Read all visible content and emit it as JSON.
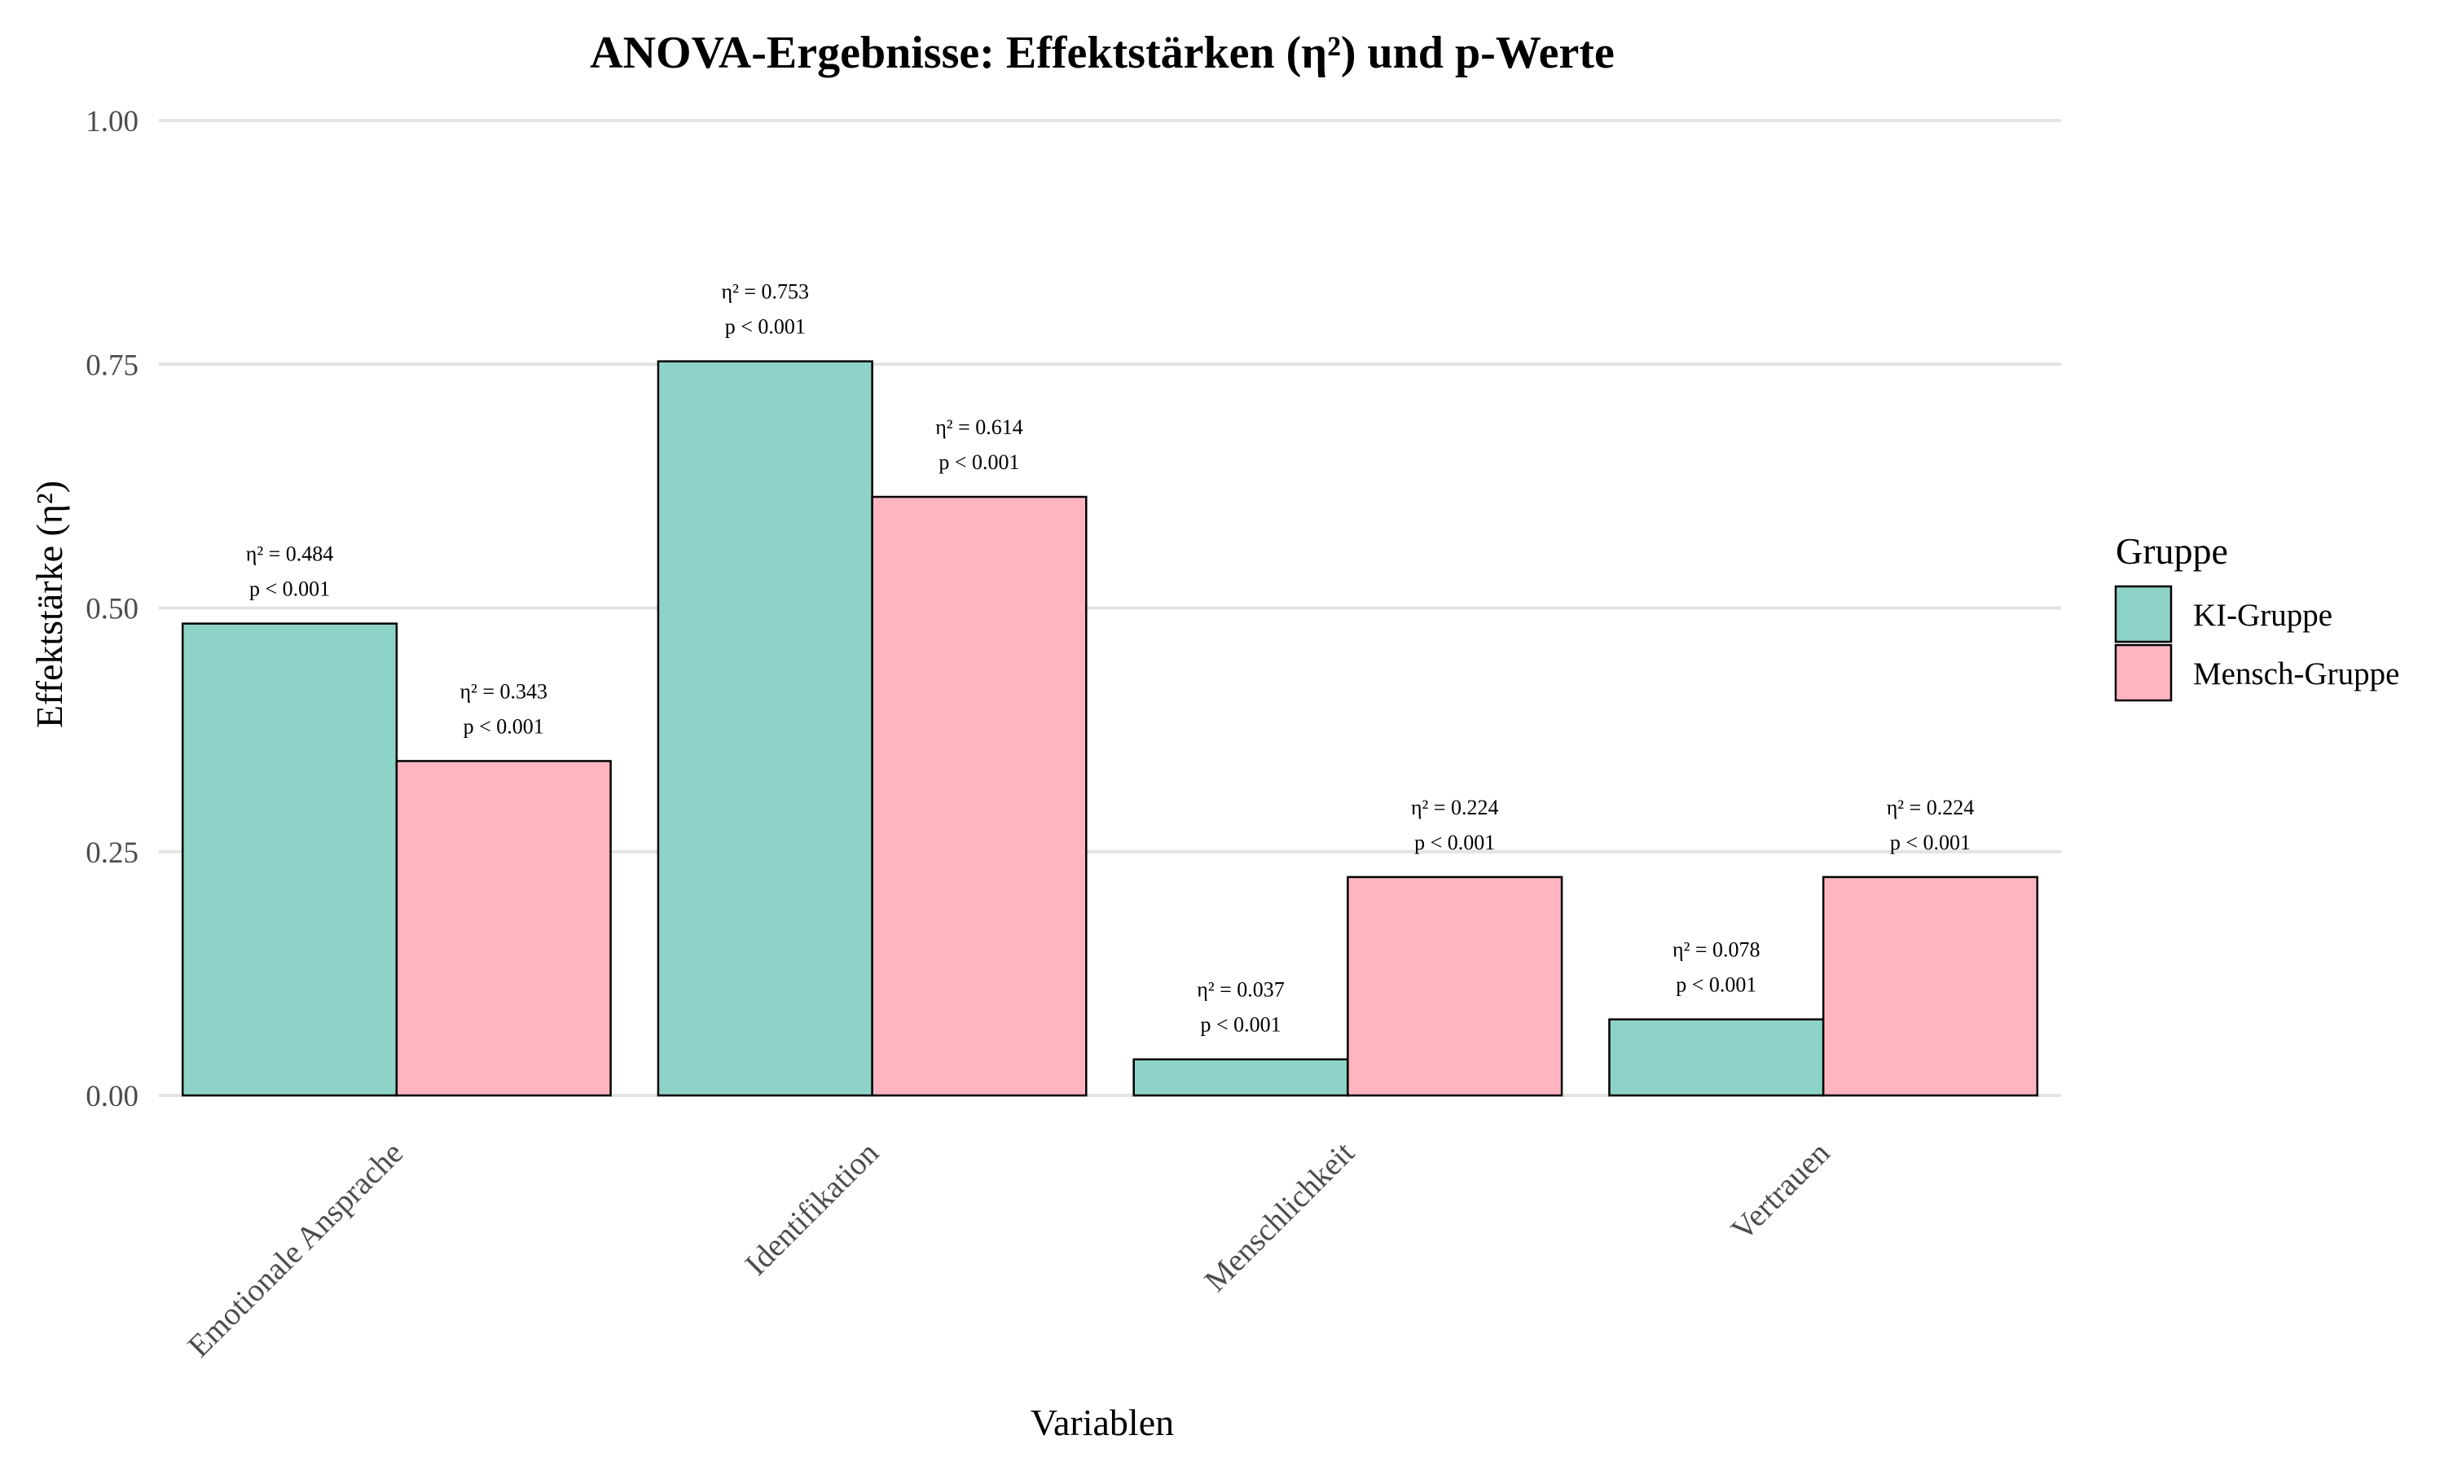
{
  "chart_data": {
    "type": "bar",
    "title": "ANOVA-Ergebnisse: Effektstärken (η²) und p-Werte",
    "xlabel": "Variablen",
    "ylabel": "Effektstärke (η²)",
    "ylim": [
      0,
      1
    ],
    "yticks": [
      "0.00",
      "0.25",
      "0.50",
      "0.75",
      "1.00"
    ],
    "ytick_values": [
      0,
      0.25,
      0.5,
      0.75,
      1.0
    ],
    "grid": true,
    "legend_position": "right",
    "legend_title": "Gruppe",
    "categories": [
      "Emotionale Ansprache",
      "Identifikation",
      "Menschlichkeit",
      "Vertrauen"
    ],
    "series": [
      {
        "name": "KI-Gruppe",
        "color": "#8ED3C7",
        "values": [
          0.484,
          0.753,
          0.037,
          0.078
        ],
        "labels": [
          [
            "η² = 0.484",
            "p < 0.001"
          ],
          [
            "η² = 0.753",
            "p < 0.001"
          ],
          [
            "η² = 0.037",
            "p < 0.001"
          ],
          [
            "η² = 0.078",
            "p < 0.001"
          ]
        ]
      },
      {
        "name": "Mensch-Gruppe",
        "color": "#FFB5C0",
        "values": [
          0.343,
          0.614,
          0.224,
          0.224
        ],
        "labels": [
          [
            "η² = 0.343",
            "p < 0.001"
          ],
          [
            "η² = 0.614",
            "p < 0.001"
          ],
          [
            "η² = 0.224",
            "p < 0.001"
          ],
          [
            "η² = 0.224",
            "p < 0.001"
          ]
        ]
      }
    ]
  }
}
